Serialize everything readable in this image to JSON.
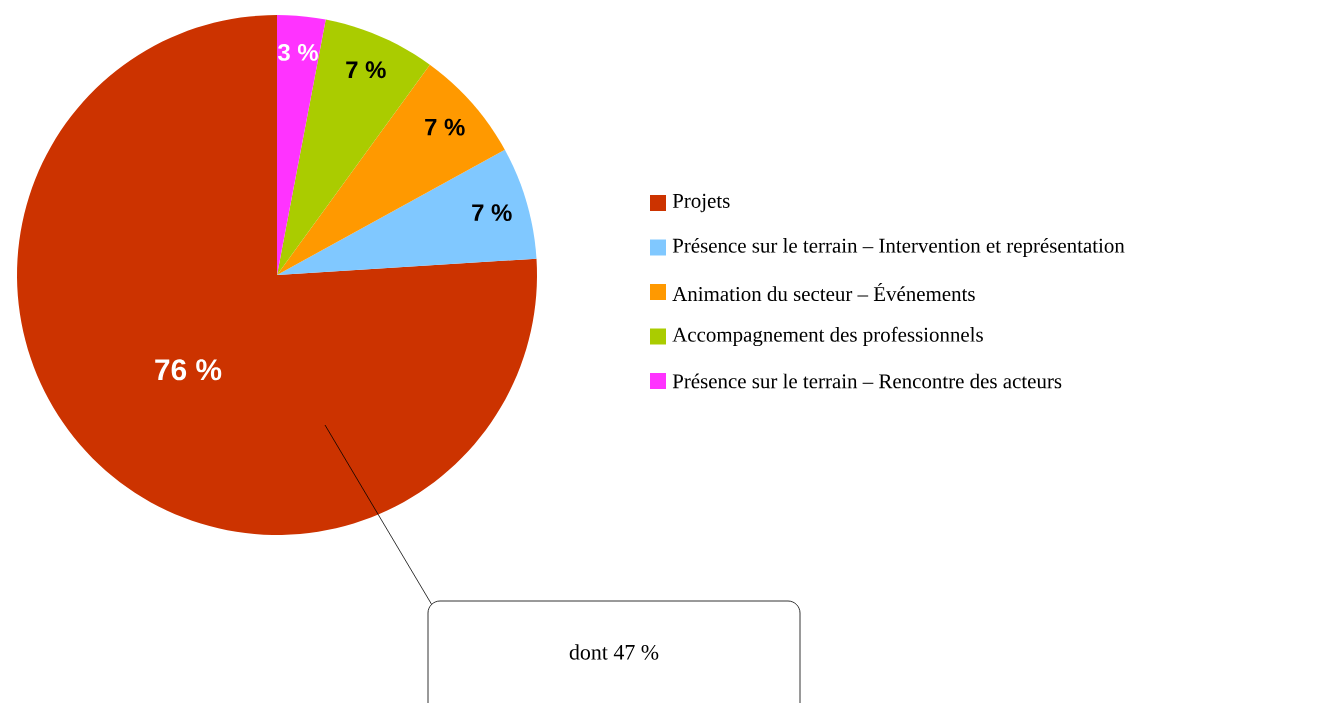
{
  "chart_data": {
    "type": "pie",
    "categories": [
      "Projets",
      "Présence sur le terrain – Intervention et représentation",
      "Animation du secteur – Événements",
      "Accompagnement des professionnels",
      "Présence sur le terrain – Rencontre des acteurs"
    ],
    "values": [
      76,
      7,
      7,
      7,
      3
    ],
    "colors": [
      "#cc3300",
      "#80c8ff",
      "#ff9900",
      "#aacc00",
      "#ff33ff"
    ],
    "value_labels": [
      "76 %",
      "7 %",
      "7 %",
      "7 %",
      "3 %"
    ],
    "legend": "right",
    "annotations": [
      "dont 47 %"
    ]
  }
}
